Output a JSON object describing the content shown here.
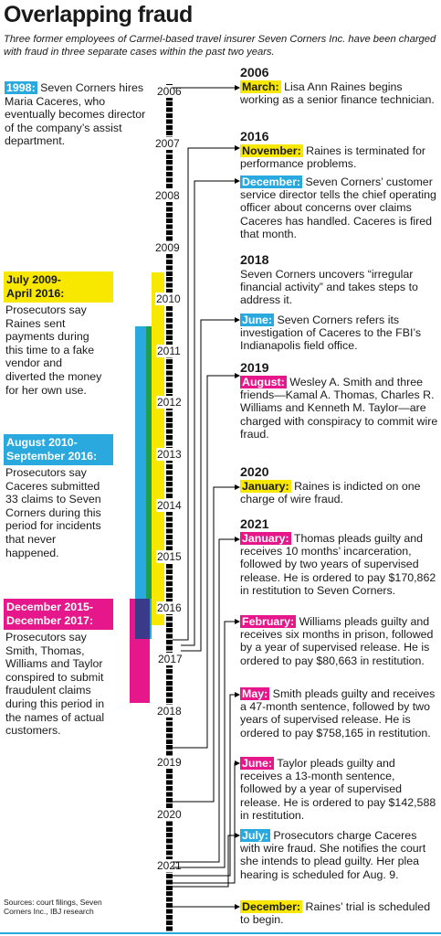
{
  "title": "Overlapping fraud",
  "subtitle": "Three former employees of Carmel-based travel insurer Seven Corners Inc. have been charged with fraud in three separate cases within the past two years.",
  "intro": {
    "tag": "1998:",
    "text": " Seven Corners hires Maria Caceres, who eventually becomes director of the company’s assist department."
  },
  "bands": [
    {
      "head": "July 2009-\nApril 2016:",
      "text": "Prosecutors say Raines sent payments during this time to a fake vendor and diverted the money for her own use.",
      "color": "#f8e800"
    },
    {
      "head": "August 2010-\nSeptember 2016:",
      "text": "Prosecutors say Caceres submitted 33 claims to Seven Corners during this period for incidents that never happened.",
      "color": "#2aa9df"
    },
    {
      "head": "December 2015-\nDecember 2017:",
      "text": "Prosecutors say Smith, Thomas, Williams and Taylor conspired to submit fraudulent claims during this period in the names of actual customers.",
      "color": "#e6168b"
    }
  ],
  "years": [
    "2006",
    "2007",
    "2008",
    "2009",
    "2010",
    "2011",
    "2012",
    "2013",
    "2014",
    "2015",
    "2016",
    "2017",
    "2018",
    "2019",
    "2020",
    "2021"
  ],
  "events": [
    {
      "year": "2006",
      "tag": "March:",
      "color": "yellow",
      "text": " Lisa Ann Raines begins working as a senior finance technician."
    },
    {
      "year": "2016",
      "tag": "November:",
      "color": "yellow",
      "text": " Raines is terminated for performance problems."
    },
    {
      "year": "",
      "tag": "December:",
      "color": "blue",
      "text": " Seven Corners’ customer service director tells the chief operating officer about concerns over claims Caceres has handled. Caceres is fired that month."
    },
    {
      "year": "2018",
      "tag": "",
      "color": "",
      "text": "Seven Corners uncovers “irregular financial activity” and takes steps to address it."
    },
    {
      "year": "",
      "tag": "June:",
      "color": "blue",
      "text": " Seven Corners refers its investigation of Caceres to the FBI’s Indianapolis field office."
    },
    {
      "year": "2019",
      "tag": "August:",
      "color": "pink",
      "text": " Wesley A. Smith and three friends—Kamal A. Thomas, Charles R. Williams and Kenneth M. Taylor—are charged with conspiracy to commit wire fraud."
    },
    {
      "year": "2020",
      "tag": "January:",
      "color": "yellow",
      "text": " Raines is indicted on one charge of wire fraud."
    },
    {
      "year": "2021",
      "tag": "January:",
      "color": "pink",
      "text": " Thomas pleads guilty and receives 10 months’ incarceration, followed by two years of supervised release. He is ordered to pay $170,862 in restitution to Seven Corners."
    },
    {
      "year": "",
      "tag": "February:",
      "color": "pink",
      "text": " Williams pleads guilty and receives six months in prison, followed by a year of supervised release. He is ordered to pay $80,663 in restitution."
    },
    {
      "year": "",
      "tag": "May:",
      "color": "pink",
      "text": " Smith pleads guilty and receives a 47-month sentence, followed by two years of supervised release. He is ordered to pay $758,165 in restitution."
    },
    {
      "year": "",
      "tag": "June:",
      "color": "pink",
      "text": " Taylor pleads guilty and receives a 13-month sentence, followed by a year of supervised release. He is ordered to pay $142,588 in restitution."
    },
    {
      "year": "",
      "tag": "July:",
      "color": "blue",
      "text": " Prosecutors charge Caceres with wire fraud. She notifies the court she intends to plead guilty. Her plea hearing is scheduled for Aug. 9."
    },
    {
      "year": "",
      "tag": "December:",
      "color": "yellow",
      "text": " Raines’ trial is scheduled to begin."
    }
  ],
  "sources": "Sources: court filings, Seven Corners Inc., IBJ research"
}
